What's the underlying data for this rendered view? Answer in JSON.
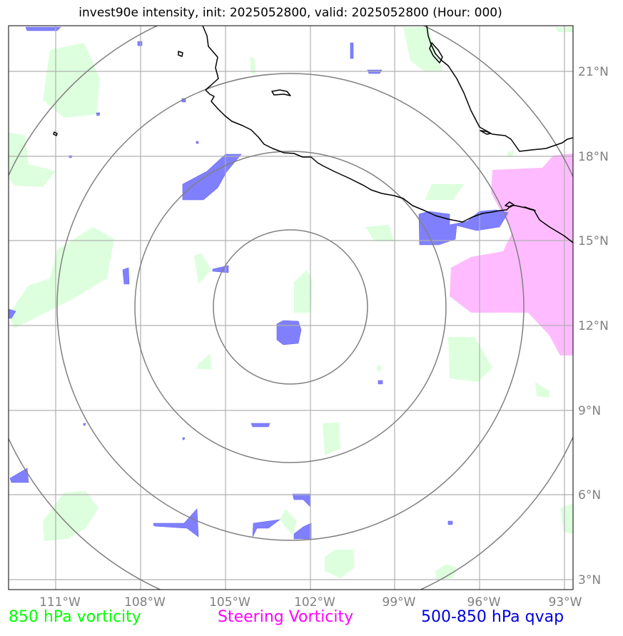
{
  "title": "invest90e intensity, init: 2025052800, valid: 2025052800 (Hour: 000)",
  "map": {
    "lon_range": [
      -112.7,
      -92.8
    ],
    "lat_range": [
      2.5,
      22.5
    ],
    "center": {
      "lon": -102.8,
      "lat": 12.7
    },
    "range_ring_radii_deg": [
      2.7,
      5.5,
      8.2,
      11.0
    ],
    "lon_ticks": [
      {
        "value": -111,
        "label": "111°W"
      },
      {
        "value": -108,
        "label": "108°W"
      },
      {
        "value": -105,
        "label": "105°W"
      },
      {
        "value": -102,
        "label": "102°W"
      },
      {
        "value": -99,
        "label": "99°W"
      },
      {
        "value": -96,
        "label": "96°W"
      },
      {
        "value": -93,
        "label": "93°W"
      }
    ],
    "lat_ticks": [
      {
        "value": 21,
        "label": "21°N"
      },
      {
        "value": 18,
        "label": "18°N"
      },
      {
        "value": 15,
        "label": "15°N"
      },
      {
        "value": 12,
        "label": "12°N"
      },
      {
        "value": 9,
        "label": "9°N"
      },
      {
        "value": 6,
        "label": "6°N"
      },
      {
        "value": 3,
        "label": "3°N"
      }
    ],
    "colors": {
      "vorticity_850": "#ddffdd",
      "steering_vorticity": "#ffbbff",
      "qvap": "#8080ff",
      "grid": "#b0b0b0",
      "ring": "#808080",
      "coast": "#000000"
    }
  },
  "legend": {
    "vorticity_850": {
      "label": "850 hPa vorticity",
      "color": "#00ff00"
    },
    "steering_vorticity": {
      "label": "Steering Vorticity",
      "color": "#ff00ff"
    },
    "qvap": {
      "label": "500-850 hPa qvap",
      "color": "#0000dd"
    }
  }
}
